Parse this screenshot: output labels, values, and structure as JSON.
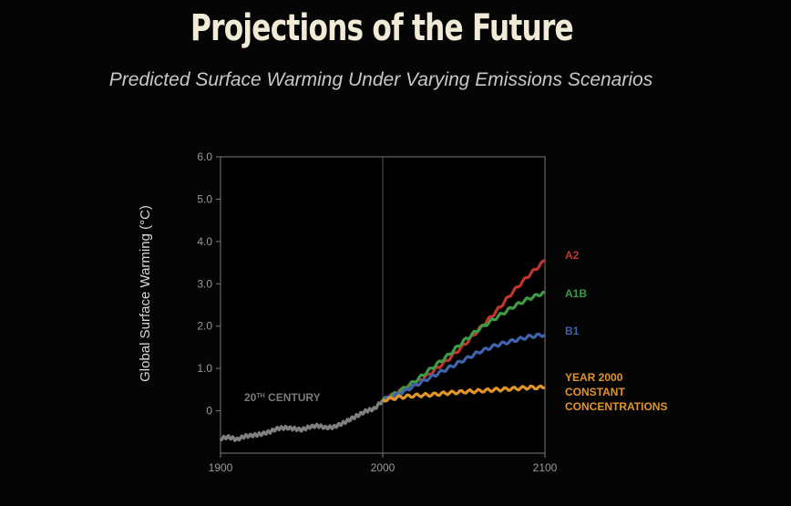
{
  "header": {
    "title": "Projections of the Future",
    "subtitle": "Predicted Surface Warming Under Varying Emissions Scenarios"
  },
  "colors": {
    "background": "#050505",
    "title": "#f0ead6",
    "axis": "#8a8a8a",
    "a2": "#c0352d",
    "a1b": "#3f9a45",
    "b1": "#3f63ad",
    "constant": "#e0942a",
    "historical": "#808080"
  },
  "chart_data": {
    "type": "line",
    "title": "",
    "xlabel": "",
    "ylabel": "Global Surface Warming (°C)",
    "xlim": [
      1900,
      2100
    ],
    "ylim": [
      -1.0,
      6.0
    ],
    "xticks": [
      "1900",
      "2000",
      "2100"
    ],
    "yticks": [
      "6.0",
      "5.0",
      "4.0",
      "3.0",
      "2.0",
      "1.0",
      "0"
    ],
    "annotations": [
      {
        "text": "20TH CENTURY",
        "x": 1915,
        "y": 0.3
      }
    ],
    "series": [
      {
        "name": "20TH CENTURY",
        "label_parts": [
          "20",
          "TH",
          " CENTURY"
        ],
        "color": "#808080",
        "x": [
          1900,
          1905,
          1910,
          1915,
          1920,
          1925,
          1930,
          1935,
          1940,
          1945,
          1950,
          1955,
          1960,
          1965,
          1970,
          1975,
          1980,
          1985,
          1990,
          1995,
          2000
        ],
        "y": [
          -0.65,
          -0.62,
          -0.68,
          -0.6,
          -0.58,
          -0.55,
          -0.5,
          -0.42,
          -0.4,
          -0.42,
          -0.45,
          -0.38,
          -0.35,
          -0.4,
          -0.38,
          -0.3,
          -0.2,
          -0.1,
          0.0,
          0.05,
          0.25
        ]
      },
      {
        "name": "A2",
        "color": "#c0352d",
        "x": [
          2000,
          2010,
          2020,
          2030,
          2040,
          2050,
          2060,
          2070,
          2080,
          2090,
          2100
        ],
        "y": [
          0.25,
          0.45,
          0.65,
          0.9,
          1.2,
          1.55,
          1.95,
          2.35,
          2.8,
          3.2,
          3.55
        ]
      },
      {
        "name": "A1B",
        "color": "#3f9a45",
        "x": [
          2000,
          2010,
          2020,
          2030,
          2040,
          2050,
          2060,
          2070,
          2080,
          2090,
          2100
        ],
        "y": [
          0.25,
          0.45,
          0.7,
          1.0,
          1.3,
          1.65,
          1.95,
          2.2,
          2.45,
          2.65,
          2.8
        ]
      },
      {
        "name": "B1",
        "color": "#3f63ad",
        "x": [
          2000,
          2010,
          2020,
          2030,
          2040,
          2050,
          2060,
          2070,
          2080,
          2090,
          2100
        ],
        "y": [
          0.25,
          0.4,
          0.6,
          0.8,
          1.0,
          1.2,
          1.4,
          1.55,
          1.65,
          1.75,
          1.8
        ]
      },
      {
        "name": "YEAR 2000 CONSTANT CONCENTRATIONS",
        "label_lines": [
          "YEAR 2000",
          "CONSTANT",
          "CONCENTRATIONS"
        ],
        "color": "#e0942a",
        "x": [
          2000,
          2010,
          2020,
          2030,
          2040,
          2050,
          2060,
          2070,
          2080,
          2090,
          2100
        ],
        "y": [
          0.25,
          0.32,
          0.36,
          0.38,
          0.42,
          0.45,
          0.47,
          0.5,
          0.52,
          0.55,
          0.55
        ]
      }
    ],
    "grid": false,
    "legend": "right"
  }
}
